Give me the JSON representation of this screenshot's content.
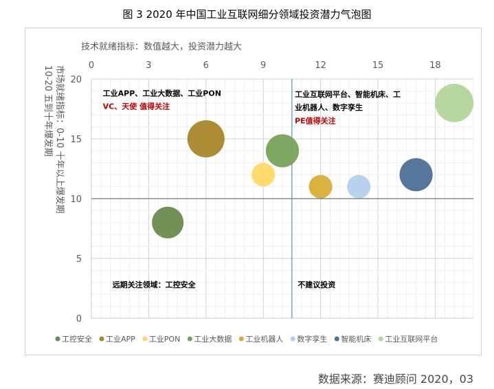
{
  "title": "图 3   2020 年中国工业互联网细分领域投资潜力气泡图",
  "source": "数据来源：赛迪顾问   2020，03",
  "chart_data": {
    "type": "bubble",
    "xlabel": "技术就绪指标：数值越大，投资潜力越大",
    "ylabel_lines": [
      "市场就绪指标：0-10  十年以上爆发期",
      "10-20  五到十年爆发期"
    ],
    "xlim": [
      0,
      20
    ],
    "ylim": [
      0,
      20
    ],
    "xticks": [
      0,
      3,
      6,
      9,
      12,
      15,
      18
    ],
    "yticks": [
      0,
      5,
      10,
      15,
      20
    ],
    "grid": true,
    "reference_lines": {
      "x": 10.5,
      "y": 10
    },
    "legend_position": "bottom",
    "series": [
      {
        "name": "工控安全",
        "x": 4,
        "y": 8,
        "size": 5.3,
        "color": "#6b8a4e"
      },
      {
        "name": "工业APP",
        "x": 6,
        "y": 15,
        "size": 7.3,
        "color": "#a8862a"
      },
      {
        "name": "工业PON",
        "x": 9,
        "y": 12,
        "size": 2.9,
        "color": "#ffd966"
      },
      {
        "name": "工业大数据",
        "x": 10,
        "y": 14,
        "size": 5.8,
        "color": "#77a25a"
      },
      {
        "name": "工业机器人",
        "x": 12,
        "y": 11,
        "size": 2.9,
        "color": "#d9ad35"
      },
      {
        "name": "数字孪生",
        "x": 14,
        "y": 11,
        "size": 2.9,
        "color": "#b4d0ec"
      },
      {
        "name": "智能机床",
        "x": 17,
        "y": 12,
        "size": 5.8,
        "color": "#4d7096"
      },
      {
        "name": "工业互联网平台",
        "x": 19,
        "y": 18,
        "size": 7.8,
        "color": "#b0d69a"
      }
    ],
    "annotations": [
      {
        "text": "工业APP、工业大数据、工业PON",
        "x": 0.6,
        "y": 18.6,
        "color": "#000000"
      },
      {
        "text": "VC、天使 值得关注",
        "x": 0.6,
        "y": 17.5,
        "color": "#c00000"
      },
      {
        "text": "工业互联网平台、智能机床、工",
        "x": 10.65,
        "y": 18.5,
        "color": "#000000"
      },
      {
        "text": "业机器人、数字孪生",
        "x": 10.65,
        "y": 17.4,
        "color": "#000000"
      },
      {
        "text": "PE值得关注",
        "x": 10.65,
        "y": 16.3,
        "color": "#c00000"
      },
      {
        "text": "远期关注领域：工控安全",
        "x": 1.1,
        "y": 2.6,
        "color": "#000000"
      },
      {
        "text": "不建议投资",
        "x": 10.8,
        "y": 2.6,
        "color": "#000000"
      }
    ]
  }
}
